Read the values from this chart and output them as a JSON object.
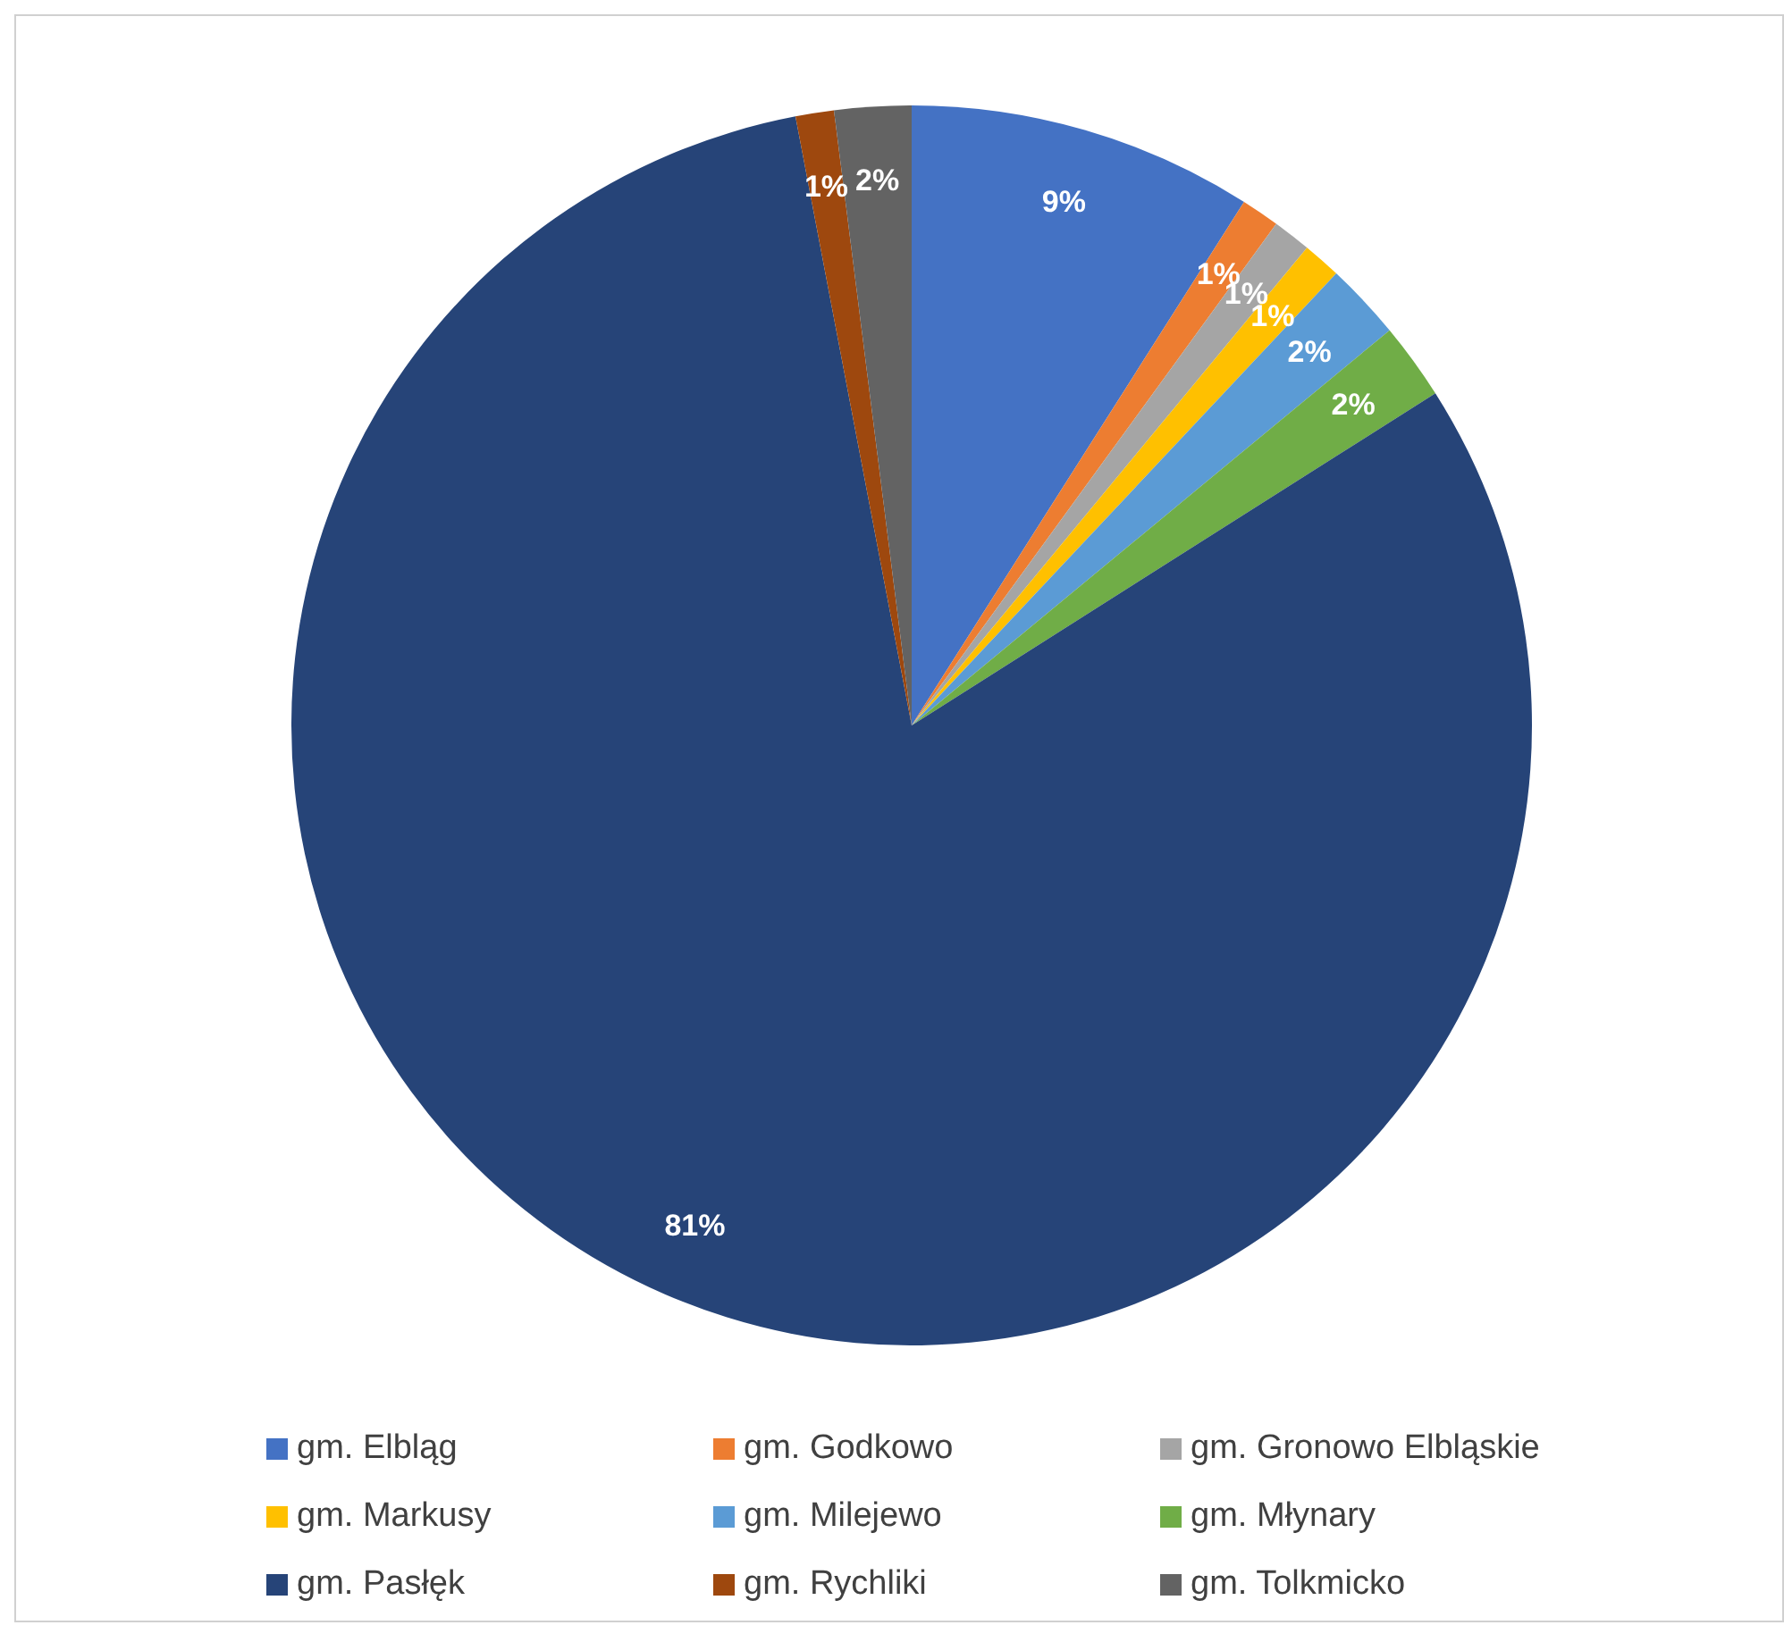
{
  "chart_data": {
    "type": "pie",
    "categories": [
      "gm. Elbląg",
      "gm. Godkowo",
      "gm. Gronowo Elbląskie",
      "gm. Markusy",
      "gm. Milejewo",
      "gm. Młynary",
      "gm. Pasłęk",
      "gm. Rychliki",
      "gm. Tolkmicko"
    ],
    "values": [
      9,
      1,
      1,
      1,
      2,
      2,
      81,
      1,
      2
    ],
    "colors": [
      "#4472c4",
      "#ed7d31",
      "#a5a5a5",
      "#ffc000",
      "#5b9bd5",
      "#70ad47",
      "#264478",
      "#9e480e",
      "#636363"
    ],
    "value_labels": [
      "9%",
      "1%",
      "1%",
      "1%",
      "2%",
      "2%",
      "81%",
      "1%",
      "2%"
    ],
    "legend": "bottom"
  }
}
